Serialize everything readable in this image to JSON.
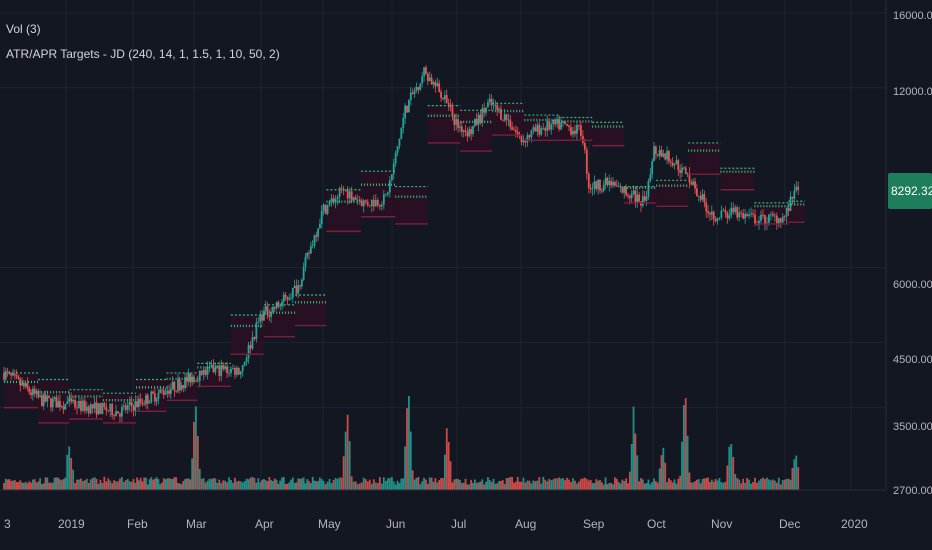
{
  "legend": {
    "vol_label": "Vol (3)",
    "atr_label": "ATR/APR Targets - JD (240, 14, 1, 1.5, 1, 10, 50, 2)"
  },
  "colors": {
    "background": "#131722",
    "grid": "#1f2330",
    "up": "#26a69a",
    "down": "#ef5350",
    "target_green": "#26c281",
    "target_band": "#2a0f22",
    "target_band_line": "#7b1f3f",
    "volume_ma": "#000000",
    "badge": "#1e7d5a"
  },
  "chart_data": {
    "type": "candlestick",
    "title": "",
    "y_axis": {
      "scale": "log",
      "tick_labels": [
        "16000.00",
        "12000.00",
        "6000.00",
        "4500.00",
        "3500.00",
        "2700.00"
      ],
      "ylim": [
        2700,
        16000
      ]
    },
    "x_axis": {
      "tick_labels": [
        "3",
        "2019",
        "Feb",
        "Mar",
        "Apr",
        "May",
        "Jun",
        "Jul",
        "Aug",
        "Sep",
        "Oct",
        "Nov",
        "Dec",
        "2020"
      ]
    },
    "last_price": "8292.32",
    "price_path": {
      "x_month_index": [
        0,
        0.3,
        0.6,
        1.0,
        1.4,
        1.8,
        2.3,
        2.8,
        3.0,
        3.3,
        3.7,
        4.0,
        4.3,
        4.6,
        5.0,
        5.3,
        5.6,
        5.9,
        6.0,
        6.2,
        6.5,
        6.8,
        7.0,
        7.2,
        7.5,
        7.8,
        8.0,
        8.3,
        8.6,
        8.9,
        9.0,
        9.3,
        9.6,
        9.9,
        10.0,
        10.3,
        10.6,
        10.9,
        11.0,
        11.3,
        11.6,
        12.0,
        12.2
      ],
      "close": [
        4000,
        3800,
        3600,
        3550,
        3500,
        3450,
        3650,
        3850,
        3950,
        4050,
        4050,
        5000,
        5200,
        5600,
        7500,
        8100,
        7700,
        7800,
        8600,
        11000,
        12800,
        11500,
        10400,
        10100,
        11300,
        10600,
        9800,
        10300,
        10400,
        10100,
        8200,
        8300,
        8000,
        7700,
        9500,
        9100,
        8400,
        7400,
        7350,
        7400,
        7200,
        7300,
        8292
      ]
    },
    "atr_targets": [
      {
        "from": 0.0,
        "to": 0.55,
        "upper": 4000,
        "lower": 3500
      },
      {
        "from": 0.55,
        "to": 1.05,
        "upper": 3900,
        "lower": 3300
      },
      {
        "from": 1.05,
        "to": 1.55,
        "upper": 3750,
        "lower": 3350
      },
      {
        "from": 1.55,
        "to": 2.05,
        "upper": 3700,
        "lower": 3300
      },
      {
        "from": 2.05,
        "to": 2.55,
        "upper": 3900,
        "lower": 3450
      },
      {
        "from": 2.55,
        "to": 3.05,
        "upper": 4000,
        "lower": 3600
      },
      {
        "from": 3.05,
        "to": 3.55,
        "upper": 4150,
        "lower": 3800
      },
      {
        "from": 3.55,
        "to": 4.05,
        "upper": 5000,
        "lower": 4300
      },
      {
        "from": 4.05,
        "to": 4.55,
        "upper": 5200,
        "lower": 4600
      },
      {
        "from": 4.55,
        "to": 5.05,
        "upper": 5400,
        "lower": 4800
      },
      {
        "from": 5.05,
        "to": 5.55,
        "upper": 8100,
        "lower": 6900
      },
      {
        "from": 5.55,
        "to": 6.05,
        "upper": 8700,
        "lower": 7300
      },
      {
        "from": 6.05,
        "to": 6.55,
        "upper": 8200,
        "lower": 7100
      },
      {
        "from": 6.55,
        "to": 7.05,
        "upper": 11200,
        "lower": 9700
      },
      {
        "from": 7.05,
        "to": 7.55,
        "upper": 11000,
        "lower": 9400
      },
      {
        "from": 7.55,
        "to": 8.05,
        "upper": 11300,
        "lower": 10000
      },
      {
        "from": 8.05,
        "to": 8.55,
        "upper": 10800,
        "lower": 9800
      },
      {
        "from": 8.55,
        "to": 9.05,
        "upper": 10700,
        "lower": 9800
      },
      {
        "from": 9.05,
        "to": 9.55,
        "upper": 10500,
        "lower": 9600
      },
      {
        "from": 9.55,
        "to": 10.05,
        "upper": 8200,
        "lower": 7700
      },
      {
        "from": 10.05,
        "to": 10.55,
        "upper": 8400,
        "lower": 7600
      },
      {
        "from": 10.55,
        "to": 11.05,
        "upper": 9700,
        "lower": 8600
      },
      {
        "from": 11.05,
        "to": 11.55,
        "upper": 8800,
        "lower": 8100
      },
      {
        "from": 11.55,
        "to": 12.05,
        "upper": 7700,
        "lower": 7100
      },
      {
        "from": 12.05,
        "to": 12.3,
        "upper": 7750,
        "lower": 7150
      }
    ],
    "volume_spikes": [
      {
        "x": 3.02,
        "v": 0.75
      },
      {
        "x": 5.35,
        "v": 0.65
      },
      {
        "x": 6.25,
        "v": 0.9
      },
      {
        "x": 6.85,
        "v": 0.58
      },
      {
        "x": 9.7,
        "v": 0.7
      },
      {
        "x": 10.5,
        "v": 0.95
      },
      {
        "x": 10.15,
        "v": 0.4
      },
      {
        "x": 1.05,
        "v": 0.38
      },
      {
        "x": 11.2,
        "v": 0.45
      },
      {
        "x": 12.15,
        "v": 0.3
      }
    ]
  }
}
